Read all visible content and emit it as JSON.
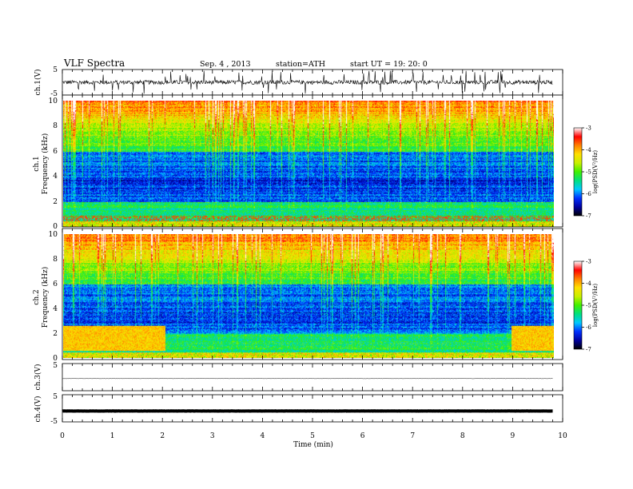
{
  "header": {
    "title": "VLF  Spectra",
    "date": "Sep. 4  , 2013",
    "station": "station=ATH",
    "start": "start  UT  =   19: 20: 0"
  },
  "chart_data": [
    {
      "type": "line",
      "panel": "ch1-waveform",
      "ylabel": "ch.1(V)",
      "ylim": [
        -5,
        5
      ],
      "y_ticks": [
        "5",
        "-5"
      ],
      "x_range_min": [
        0,
        9.8
      ],
      "baseline_v": 0
    },
    {
      "type": "heatmap",
      "panel": "ch1-spectrogram",
      "ylabel_top": "ch.1",
      "ylabel": "Frequency (kHz)",
      "ylim": [
        0,
        10
      ],
      "y_ticks": [
        "0",
        "2",
        "4",
        "6",
        "8",
        "10"
      ],
      "colorbar": {
        "label": "log(PSD(V²/Hz)",
        "range": [
          -7,
          -3
        ],
        "ticks": [
          "-3",
          "-4",
          "-5",
          "-6",
          "-7"
        ]
      }
    },
    {
      "type": "heatmap",
      "panel": "ch2-spectrogram",
      "ylabel_top": "ch.2",
      "ylabel": "Frequency (kHz)",
      "ylim": [
        0,
        10
      ],
      "y_ticks": [
        "0",
        "2",
        "4",
        "6",
        "8",
        "10"
      ],
      "colorbar": {
        "label": "log(PSD(V²/Hz)",
        "range": [
          -7,
          -3
        ],
        "ticks": [
          "-3",
          "-4",
          "-5",
          "-6",
          "-7"
        ]
      }
    },
    {
      "type": "line",
      "panel": "ch3-waveform",
      "ylabel": "ch.3(V)",
      "ylim": [
        -5,
        5
      ],
      "y_ticks": [
        "5"
      ],
      "baseline_v": -0.5
    },
    {
      "type": "line",
      "panel": "ch4-waveform",
      "ylabel": "ch.4(V)",
      "ylim": [
        -5,
        5
      ],
      "y_ticks": [
        "5",
        "-5"
      ],
      "baseline_v": -1
    }
  ],
  "x_axis": {
    "label": "Time  (min)",
    "range": [
      0,
      10
    ],
    "ticks": [
      "0",
      "1",
      "2",
      "3",
      "4",
      "5",
      "6",
      "7",
      "8",
      "9",
      "10"
    ]
  },
  "colors": {
    "colormap": [
      "#000000",
      "#0000a0",
      "#0030ff",
      "#00c8ff",
      "#00e080",
      "#40f000",
      "#c8f000",
      "#ffe000",
      "#ff8000",
      "#ff0000",
      "#ffffff"
    ],
    "trace": "#000000"
  }
}
